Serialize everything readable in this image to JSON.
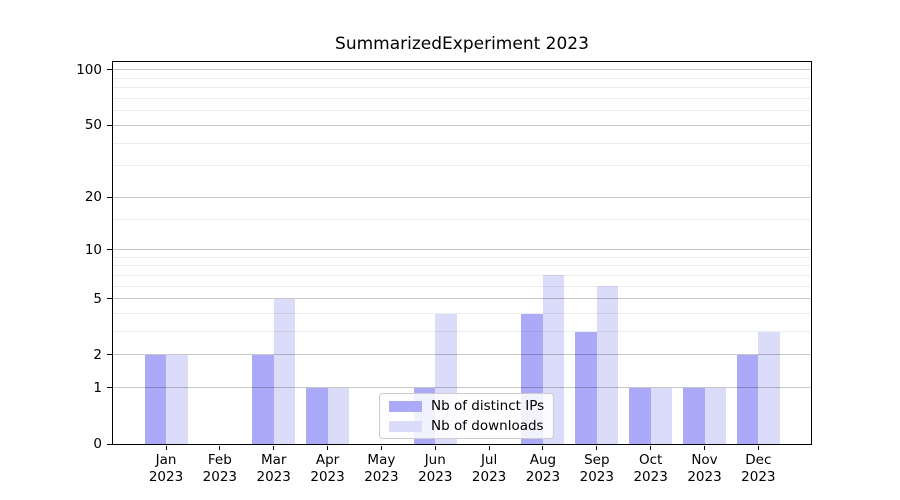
{
  "figure": {
    "title": "SummarizedExperiment 2023"
  },
  "chart_data": {
    "type": "bar",
    "title": "SummarizedExperiment 2023",
    "categories": [
      "Jan",
      "Feb",
      "Mar",
      "Apr",
      "May",
      "Jun",
      "Jul",
      "Aug",
      "Sep",
      "Oct",
      "Nov",
      "Dec"
    ],
    "year": "2023",
    "series": [
      {
        "name": "Nb of distinct IPs",
        "color": "#aaaaf9",
        "values": [
          2,
          0,
          2,
          1,
          0,
          1,
          0,
          4,
          3,
          1,
          1,
          2
        ]
      },
      {
        "name": "Nb of downloads",
        "color": "#dbdbfa",
        "values": [
          2,
          0,
          5,
          1,
          0,
          4,
          0,
          7,
          6,
          1,
          1,
          3
        ]
      }
    ],
    "xlabel": "",
    "ylabel": "",
    "yscale": "log10(value+1)",
    "ylim": [
      0,
      110
    ],
    "y_major_ticks": [
      0,
      1,
      2,
      5,
      10,
      20,
      50,
      100
    ],
    "y_minor_gridlines": [
      3,
      4,
      6,
      7,
      8,
      9,
      15,
      30,
      40,
      60,
      70,
      80,
      90
    ],
    "grid": true,
    "legend": {
      "position": "inside-bottom-center",
      "entries": [
        "Nb of distinct IPs",
        "Nb of downloads"
      ]
    },
    "colors": {
      "distinct_ips_bar": "#aaaaf9",
      "downloads_bar": "#dbdbfa",
      "major_gridline": "#c8c8c8",
      "minor_gridline": "#ededed",
      "axis": "#000000",
      "background": "#ffffff"
    }
  }
}
